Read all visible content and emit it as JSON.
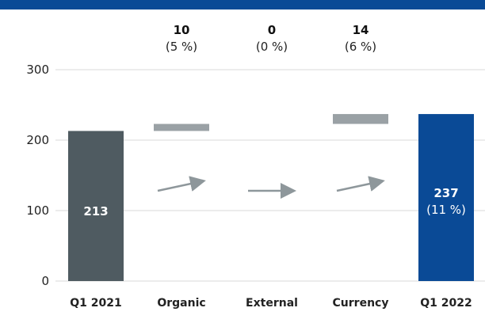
{
  "chart_data": {
    "type": "bar",
    "categories": [
      "Q1 2021",
      "Organic",
      "External",
      "Currency",
      "Q1 2022"
    ],
    "values": [
      213,
      10,
      0,
      14,
      237
    ],
    "bar_kinds": [
      "total",
      "delta",
      "delta",
      "delta",
      "total"
    ],
    "delta_labels": [
      "10",
      "0",
      "14"
    ],
    "delta_pct_labels": [
      "(5 %)",
      "(0 %)",
      "(6 %)"
    ],
    "start_label": "213",
    "end_label": "237",
    "end_pct_label": "(11 %)",
    "ylim": [
      0,
      300
    ],
    "yticks": [
      0,
      100,
      200,
      300
    ],
    "grid": true,
    "colors": {
      "top_rule": "#0a4a96",
      "start_bar": "#4f5b61",
      "delta_bar": "#9aa1a5",
      "end_bar": "#0a4a96",
      "end_category_label": "#0a4a96",
      "arrow": "#8e979b",
      "grid": "#d9d9d9"
    }
  }
}
